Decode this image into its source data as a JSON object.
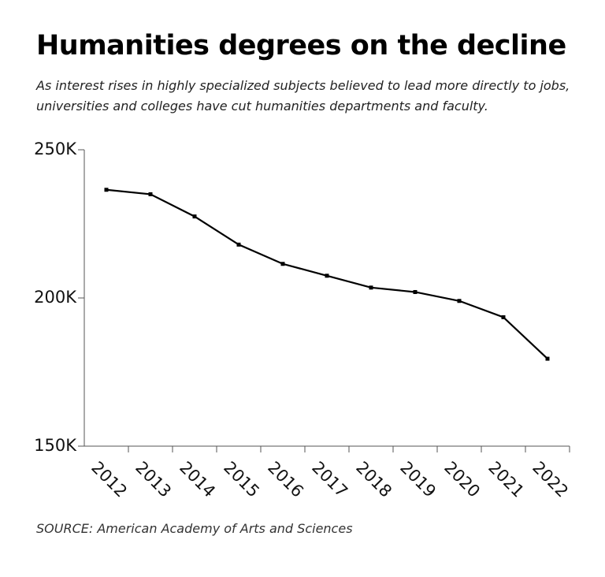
{
  "chart_data": {
    "type": "line",
    "title": "Humanities degrees on the decline",
    "subtitle": "As interest rises in highly specialized subjects believed to lead more directly to jobs, universities and colleges have cut humanities departments and faculty.",
    "source": "SOURCE: American Academy of Arts and Sciences",
    "categories": [
      "2012",
      "2013",
      "2014",
      "2015",
      "2016",
      "2017",
      "2018",
      "2019",
      "2020",
      "2021",
      "2022"
    ],
    "values": [
      236500,
      235000,
      227500,
      218000,
      211500,
      207500,
      203500,
      202000,
      199000,
      193500,
      179500
    ],
    "color": "#000000",
    "ylim": [
      150000,
      250000
    ],
    "yticks": [
      {
        "value": 150000,
        "label": "150K"
      },
      {
        "value": 200000,
        "label": "200K"
      },
      {
        "value": 250000,
        "label": "250K"
      }
    ],
    "grid": false
  }
}
